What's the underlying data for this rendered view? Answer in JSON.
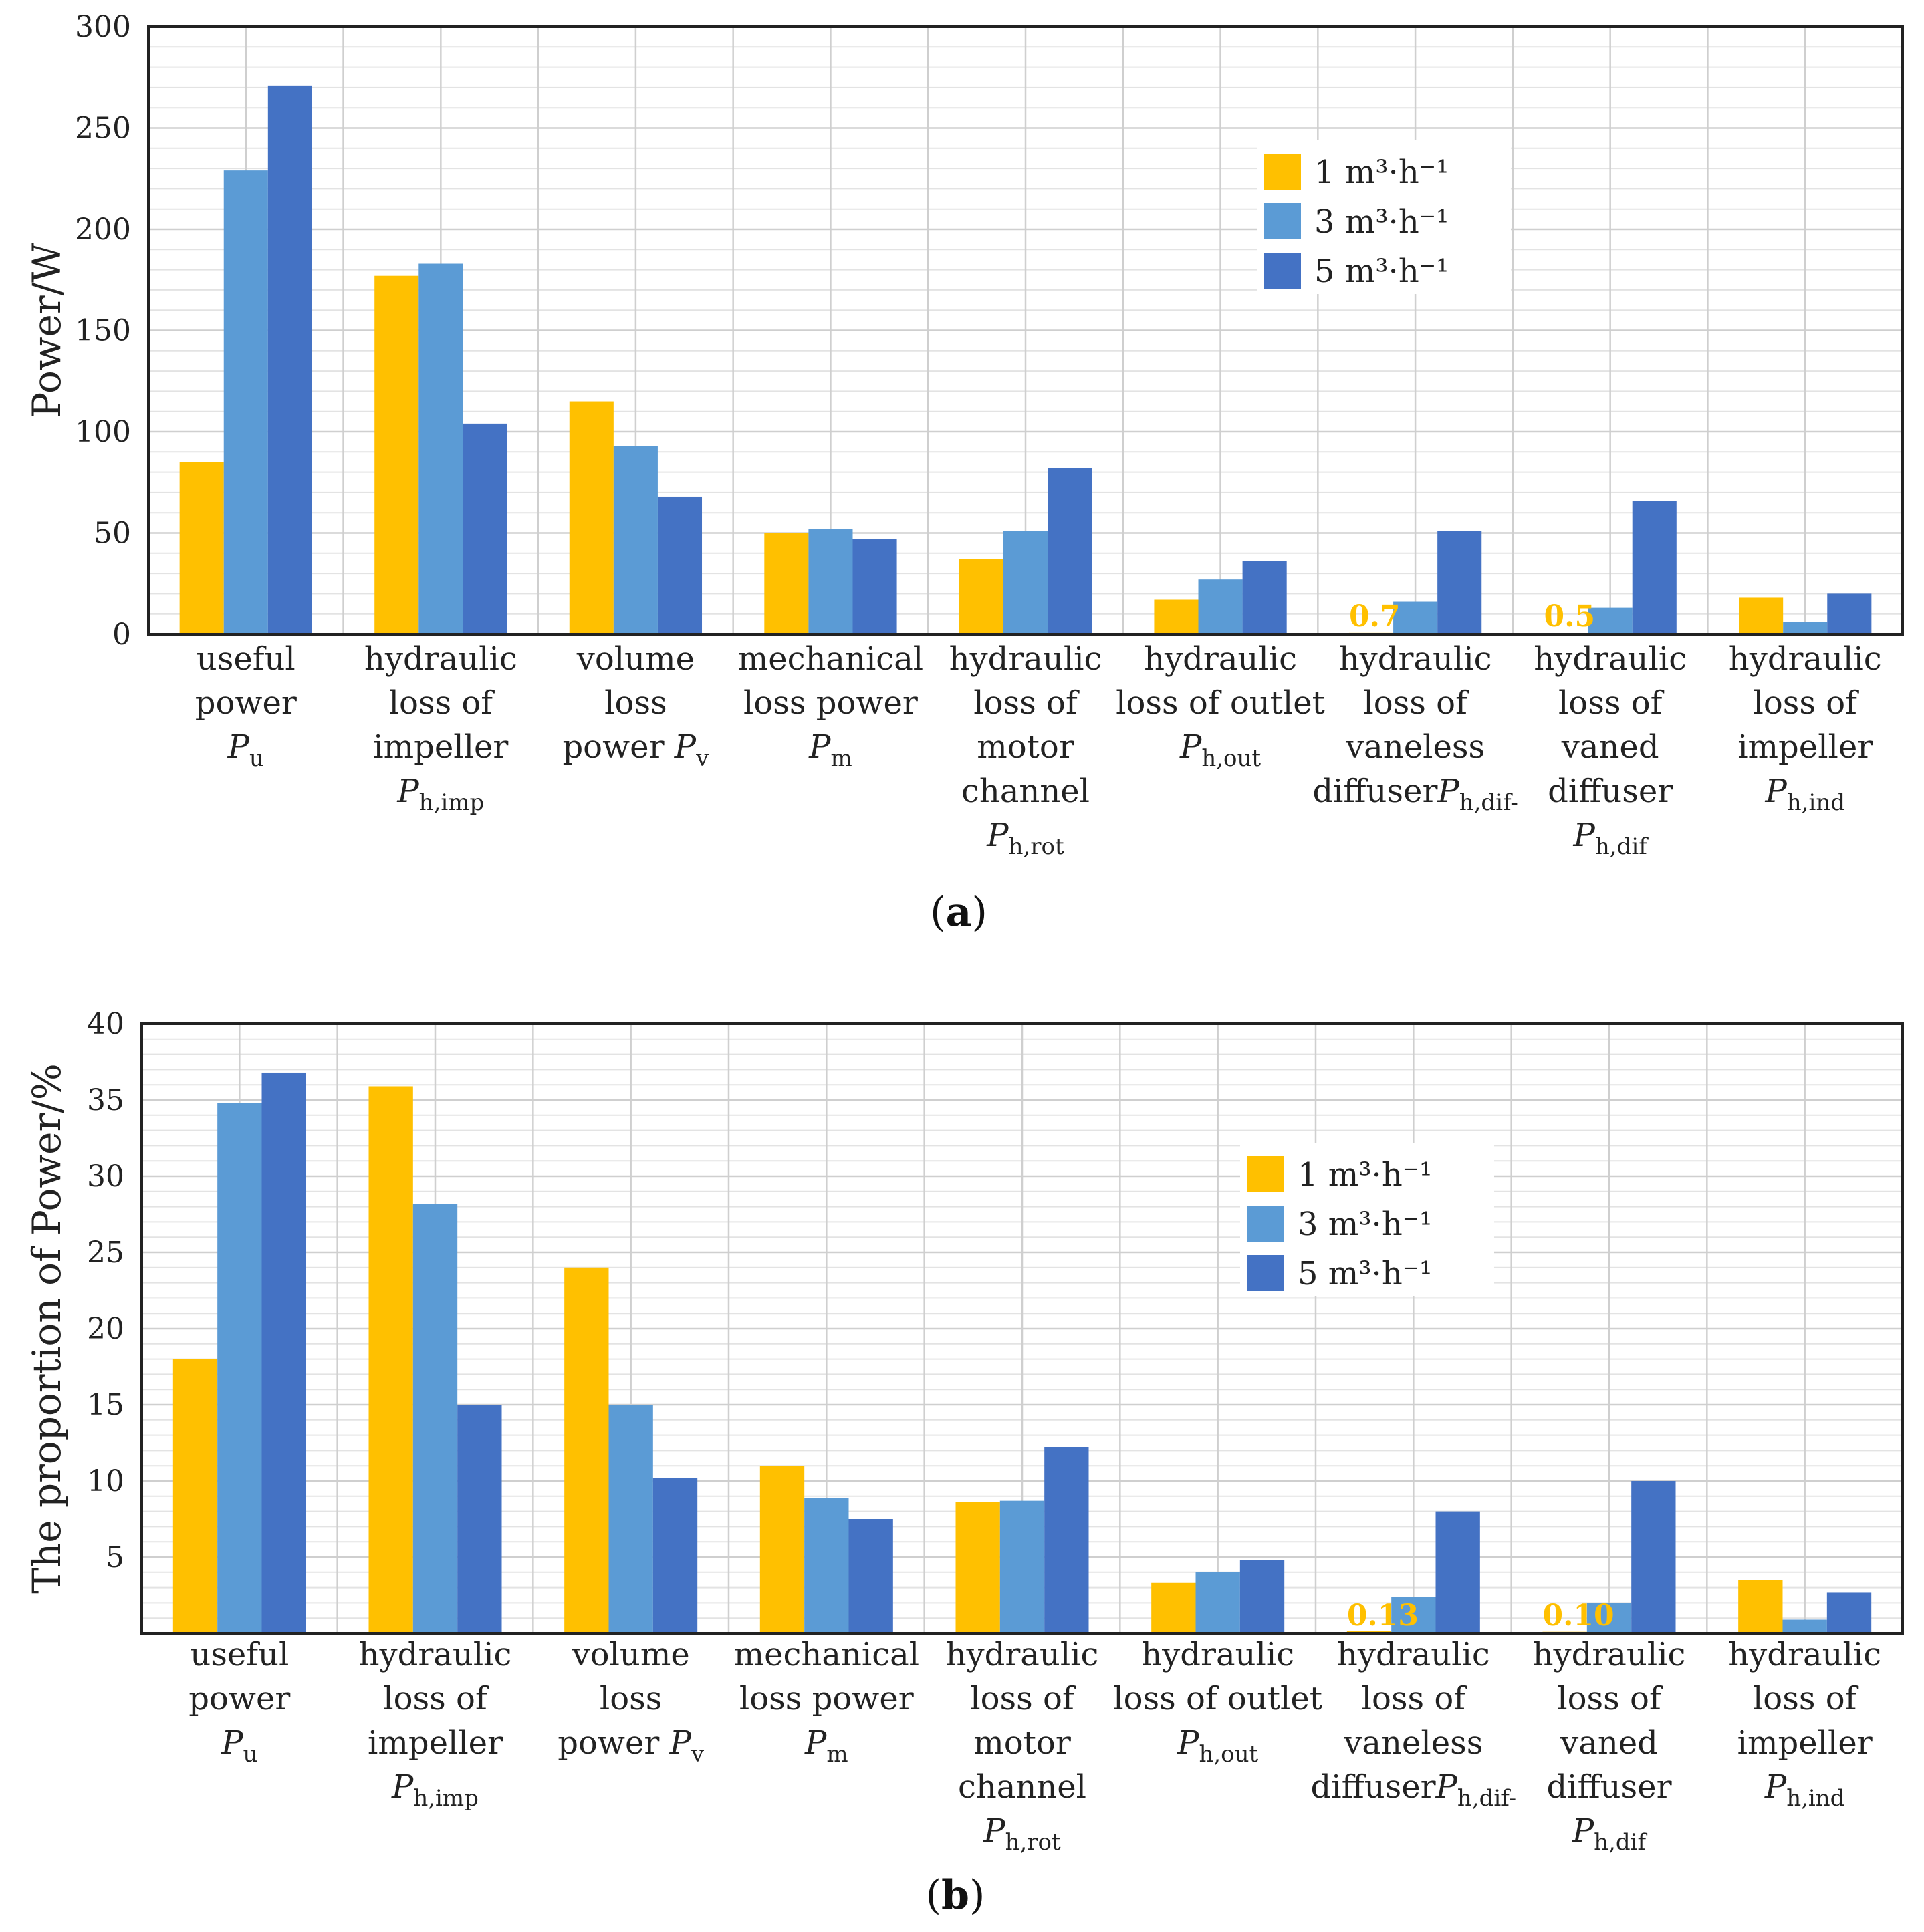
{
  "series_colors": [
    "#ffc000",
    "#5b9bd5",
    "#4472c4"
  ],
  "chart_data": [
    {
      "type": "bar",
      "panel_label_open": "(",
      "panel_label": "a",
      "panel_label_close": ")",
      "title": "",
      "ylabel": "Power/W",
      "ylim": [
        0,
        300
      ],
      "yticks": [
        0,
        50,
        100,
        150,
        200,
        250,
        300
      ],
      "minor_step": 10,
      "legend_position": "top-right",
      "categories": [
        {
          "lines": [
            "useful",
            "power"
          ],
          "sym": "P",
          "sub": "u"
        },
        {
          "lines": [
            "hydraulic",
            "loss of",
            "impeller"
          ],
          "sym": "P",
          "sub": "h,imp"
        },
        {
          "lines": [
            "volume",
            "loss"
          ],
          "last_prefix": "power ",
          "sym": "P",
          "sub": "v"
        },
        {
          "lines": [
            "mechanical",
            "loss power"
          ],
          "sym": "P",
          "sub": "m"
        },
        {
          "lines": [
            "hydraulic",
            "loss of",
            "motor",
            "channel"
          ],
          "sym": "P",
          "sub": "h,rot"
        },
        {
          "lines": [
            "hydraulic",
            "loss of outlet"
          ],
          "sym": "P",
          "sub": "h,out"
        },
        {
          "lines": [
            "hydraulic",
            "loss of",
            "vaneless"
          ],
          "last_prefix": "diffuser",
          "sym": "P",
          "sub": "h,dif-"
        },
        {
          "lines": [
            "hydraulic",
            "loss of",
            "vaned",
            "diffuser"
          ],
          "sym": "P",
          "sub": "h,dif"
        },
        {
          "lines": [
            "hydraulic",
            "loss of",
            "impeller"
          ],
          "sym": "P",
          "sub": "h,ind"
        }
      ],
      "series": [
        {
          "name": "1 m³·h⁻¹",
          "values": [
            85,
            177,
            115,
            50,
            37,
            17,
            0.7,
            0.5,
            18
          ]
        },
        {
          "name": "3 m³·h⁻¹",
          "values": [
            229,
            183,
            93,
            52,
            51,
            27,
            16,
            13,
            6
          ]
        },
        {
          "name": "5 m³·h⁻¹",
          "values": [
            271,
            104,
            68,
            47,
            82,
            36,
            51,
            66,
            20
          ]
        }
      ],
      "annotations": [
        {
          "category": 6,
          "text": "0.7"
        },
        {
          "category": 7,
          "text": "0.5"
        }
      ]
    },
    {
      "type": "bar",
      "panel_label_open": "(",
      "panel_label": "b",
      "panel_label_close": ")",
      "title": "",
      "ylabel": "The proportion of Power/%",
      "ylim": [
        0,
        40
      ],
      "yticks": [
        5,
        10,
        15,
        20,
        25,
        30,
        35,
        40
      ],
      "minor_step": 1,
      "legend_position": "top-right",
      "categories": [
        {
          "lines": [
            "useful",
            "power"
          ],
          "sym": "P",
          "sub": "u"
        },
        {
          "lines": [
            "hydraulic",
            "loss of",
            "impeller"
          ],
          "sym": "P",
          "sub": "h,imp"
        },
        {
          "lines": [
            "volume",
            "loss"
          ],
          "last_prefix": "power ",
          "sym": "P",
          "sub": "v"
        },
        {
          "lines": [
            "mechanical",
            "loss power"
          ],
          "sym": "P",
          "sub": "m"
        },
        {
          "lines": [
            "hydraulic",
            "loss of",
            "motor",
            "channel"
          ],
          "sym": "P",
          "sub": "h,rot"
        },
        {
          "lines": [
            "hydraulic",
            "loss of outlet"
          ],
          "sym": "P",
          "sub": "h,out"
        },
        {
          "lines": [
            "hydraulic",
            "loss of",
            "vaneless"
          ],
          "last_prefix": "diffuser",
          "sym": "P",
          "sub": "h,dif-"
        },
        {
          "lines": [
            "hydraulic",
            "loss of",
            "vaned",
            "diffuser"
          ],
          "sym": "P",
          "sub": "h,dif"
        },
        {
          "lines": [
            "hydraulic",
            "loss of",
            "impeller"
          ],
          "sym": "P",
          "sub": "h,ind"
        }
      ],
      "series": [
        {
          "name": "1 m³·h⁻¹",
          "values": [
            18,
            35.9,
            24,
            11,
            8.6,
            3.3,
            0.13,
            0.1,
            3.5
          ]
        },
        {
          "name": "3 m³·h⁻¹",
          "values": [
            34.8,
            28.2,
            15,
            8.9,
            8.7,
            4,
            2.4,
            2,
            0.9
          ]
        },
        {
          "name": "5 m³·h⁻¹",
          "values": [
            36.8,
            15,
            10.2,
            7.5,
            12.2,
            4.8,
            8,
            10,
            2.7
          ]
        }
      ],
      "annotations": [
        {
          "category": 6,
          "text": "0.13"
        },
        {
          "category": 7,
          "text": "0.10"
        }
      ]
    }
  ]
}
